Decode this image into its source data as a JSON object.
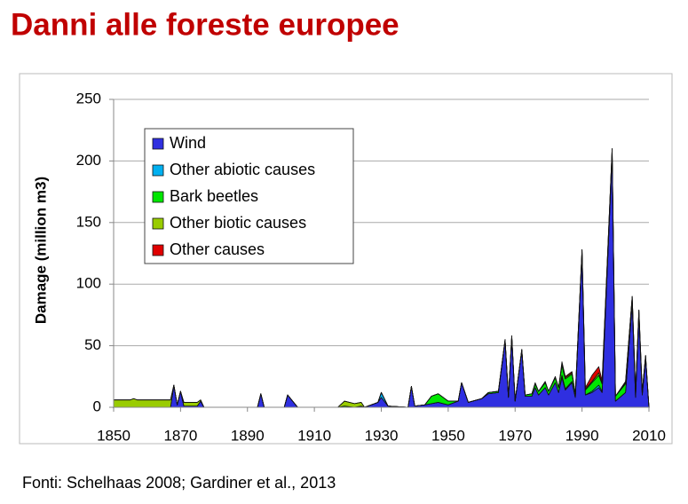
{
  "chart_data": {
    "type": "stacked_area",
    "title": "Danni alle foreste europee",
    "source": "Fonti: Schelhaas 2008; Gardiner et al., 2013",
    "y_label": "Damage (million m3)",
    "x": [
      1850,
      1855,
      1856,
      1857,
      1867,
      1868,
      1869,
      1870,
      1871,
      1875,
      1876,
      1877,
      1893,
      1894,
      1895,
      1901,
      1902,
      1905,
      1917,
      1919,
      1922,
      1924,
      1925,
      1929,
      1930,
      1932,
      1938,
      1939,
      1940,
      1943,
      1945,
      1947,
      1950,
      1953,
      1954,
      1956,
      1960,
      1962,
      1965,
      1967,
      1968,
      1969,
      1970,
      1972,
      1973,
      1975,
      1976,
      1977,
      1979,
      1980,
      1982,
      1983,
      1984,
      1985,
      1987,
      1988,
      1990,
      1991,
      1993,
      1995,
      1996,
      1999,
      2000,
      2003,
      2005,
      2006,
      2007,
      2008,
      2009,
      2010
    ],
    "series": [
      {
        "name": "Wind",
        "color": "#2f2fe0",
        "values": [
          0,
          0,
          0,
          0,
          0,
          18,
          2,
          13,
          1,
          1,
          5,
          0,
          0,
          11,
          0,
          0,
          10,
          0,
          0,
          0,
          0,
          1,
          0,
          4,
          8,
          1,
          0,
          17,
          1,
          2,
          3,
          4,
          2,
          5,
          20,
          4,
          7,
          11,
          12,
          54,
          8,
          57,
          5,
          46,
          9,
          9,
          16,
          10,
          16,
          10,
          20,
          12,
          24,
          14,
          20,
          8,
          125,
          10,
          12,
          16,
          12,
          205,
          5,
          12,
          85,
          8,
          75,
          10,
          40,
          0
        ]
      },
      {
        "name": "Other abiotic causes",
        "color": "#00b0f0",
        "values": [
          0,
          0,
          0,
          0,
          0,
          0,
          0,
          0,
          0,
          0,
          0,
          0,
          0,
          0,
          0,
          0,
          0,
          0,
          0,
          0,
          0,
          0,
          0,
          0,
          4,
          0,
          0,
          0,
          0,
          0,
          0,
          0,
          0,
          0,
          0,
          0,
          0,
          0,
          0,
          0,
          0,
          0,
          0,
          0,
          0,
          0,
          0,
          0,
          0,
          0,
          0,
          0,
          2,
          1,
          1,
          0,
          0,
          0,
          1,
          2,
          1,
          0,
          0,
          0,
          0,
          0,
          0,
          0,
          0,
          0
        ]
      },
      {
        "name": "Bark beetles",
        "color": "#00e600",
        "values": [
          0,
          0,
          0,
          0,
          0,
          0,
          0,
          0,
          0,
          0,
          0,
          0,
          0,
          0,
          0,
          0,
          0,
          0,
          0,
          1,
          0,
          0,
          0,
          0,
          0,
          0,
          0,
          0,
          0,
          0,
          6,
          7,
          3,
          0,
          0,
          0,
          0,
          1,
          1,
          1,
          1,
          1,
          0,
          1,
          1,
          2,
          3,
          3,
          4,
          3,
          4,
          4,
          8,
          8,
          6,
          3,
          3,
          4,
          7,
          8,
          6,
          5,
          4,
          7,
          5,
          5,
          4,
          3,
          2,
          0
        ]
      },
      {
        "name": "Other biotic causes",
        "color": "#99cc00",
        "values": [
          6,
          6,
          7,
          6,
          6,
          0,
          0,
          0,
          3,
          3,
          1,
          0,
          0,
          0,
          0,
          0,
          0,
          0,
          0,
          4,
          3,
          3,
          0,
          0,
          0,
          0,
          0,
          0,
          0,
          0,
          0,
          0,
          0,
          0,
          0,
          0,
          0,
          0,
          0,
          0,
          0,
          0,
          0,
          0,
          0,
          0,
          0,
          0,
          0,
          0,
          0,
          0,
          1,
          1,
          1,
          0,
          0,
          1,
          1,
          2,
          1,
          0,
          0,
          1,
          0,
          0,
          0,
          0,
          0,
          0
        ]
      },
      {
        "name": "Other causes",
        "color": "#e00000",
        "values": [
          0,
          0,
          0,
          0,
          0,
          0,
          0,
          0,
          0,
          0,
          0,
          0,
          0,
          0,
          0,
          0,
          0,
          0,
          0,
          0,
          0,
          0,
          0,
          0,
          0,
          0,
          0,
          0,
          0,
          0,
          0,
          0,
          0,
          0,
          0,
          0,
          0,
          0,
          0,
          0,
          0,
          0,
          0,
          0,
          0,
          0,
          1,
          0,
          1,
          0,
          1,
          0,
          2,
          1,
          1,
          0,
          0,
          1,
          5,
          5,
          2,
          0,
          0,
          1,
          0,
          0,
          0,
          0,
          0,
          0
        ]
      }
    ],
    "xlim": [
      1850,
      2010
    ],
    "xticks": [
      1850,
      1870,
      1890,
      1910,
      1930,
      1950,
      1970,
      1990,
      2010
    ],
    "ylim": [
      0,
      250
    ],
    "yticks": [
      0,
      50,
      100,
      150,
      200,
      250
    ],
    "grid": true,
    "legend": "upper-left"
  }
}
